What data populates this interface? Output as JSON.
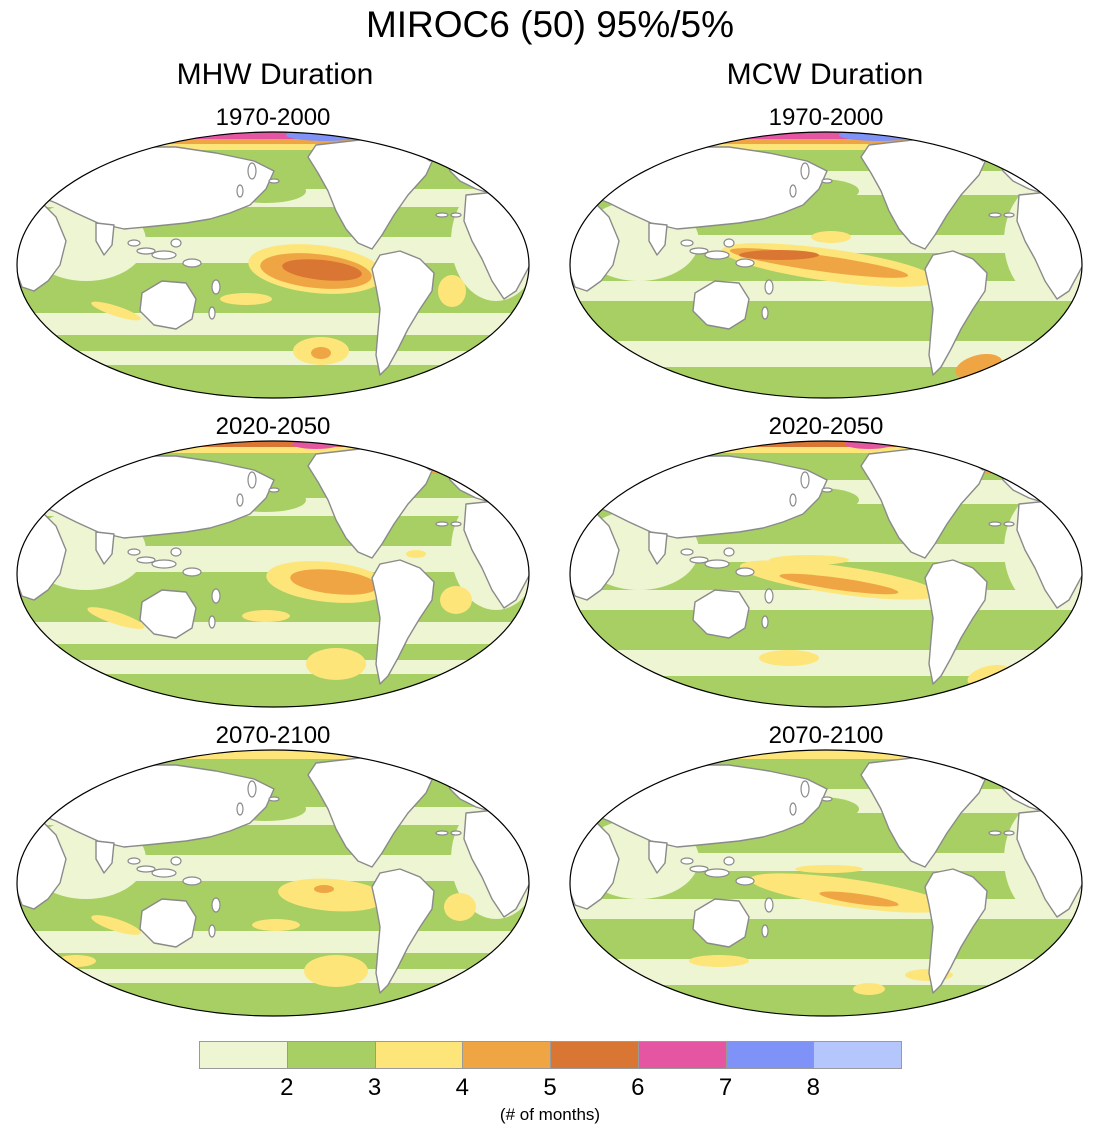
{
  "title": "MIROC6 (50) 95%/5%",
  "columns": [
    {
      "title": "MHW Duration",
      "panels": [
        "1970-2000",
        "2020-2050",
        "2070-2100"
      ]
    },
    {
      "title": "MCW Duration",
      "panels": [
        "1970-2000",
        "2020-2050",
        "2070-2100"
      ]
    }
  ],
  "colorbar": {
    "colors": [
      "#eef5d2",
      "#a7cf63",
      "#fde57a",
      "#efa544",
      "#da7633",
      "#e456a2",
      "#7f92f8",
      "#b4c6fb"
    ],
    "ticks": [
      "2",
      "3",
      "4",
      "5",
      "6",
      "7",
      "8"
    ],
    "units": "(# of months)"
  },
  "colors": {
    "land": "#ffffff",
    "coast": "#8a8a8a",
    "outline": "#000000"
  }
}
